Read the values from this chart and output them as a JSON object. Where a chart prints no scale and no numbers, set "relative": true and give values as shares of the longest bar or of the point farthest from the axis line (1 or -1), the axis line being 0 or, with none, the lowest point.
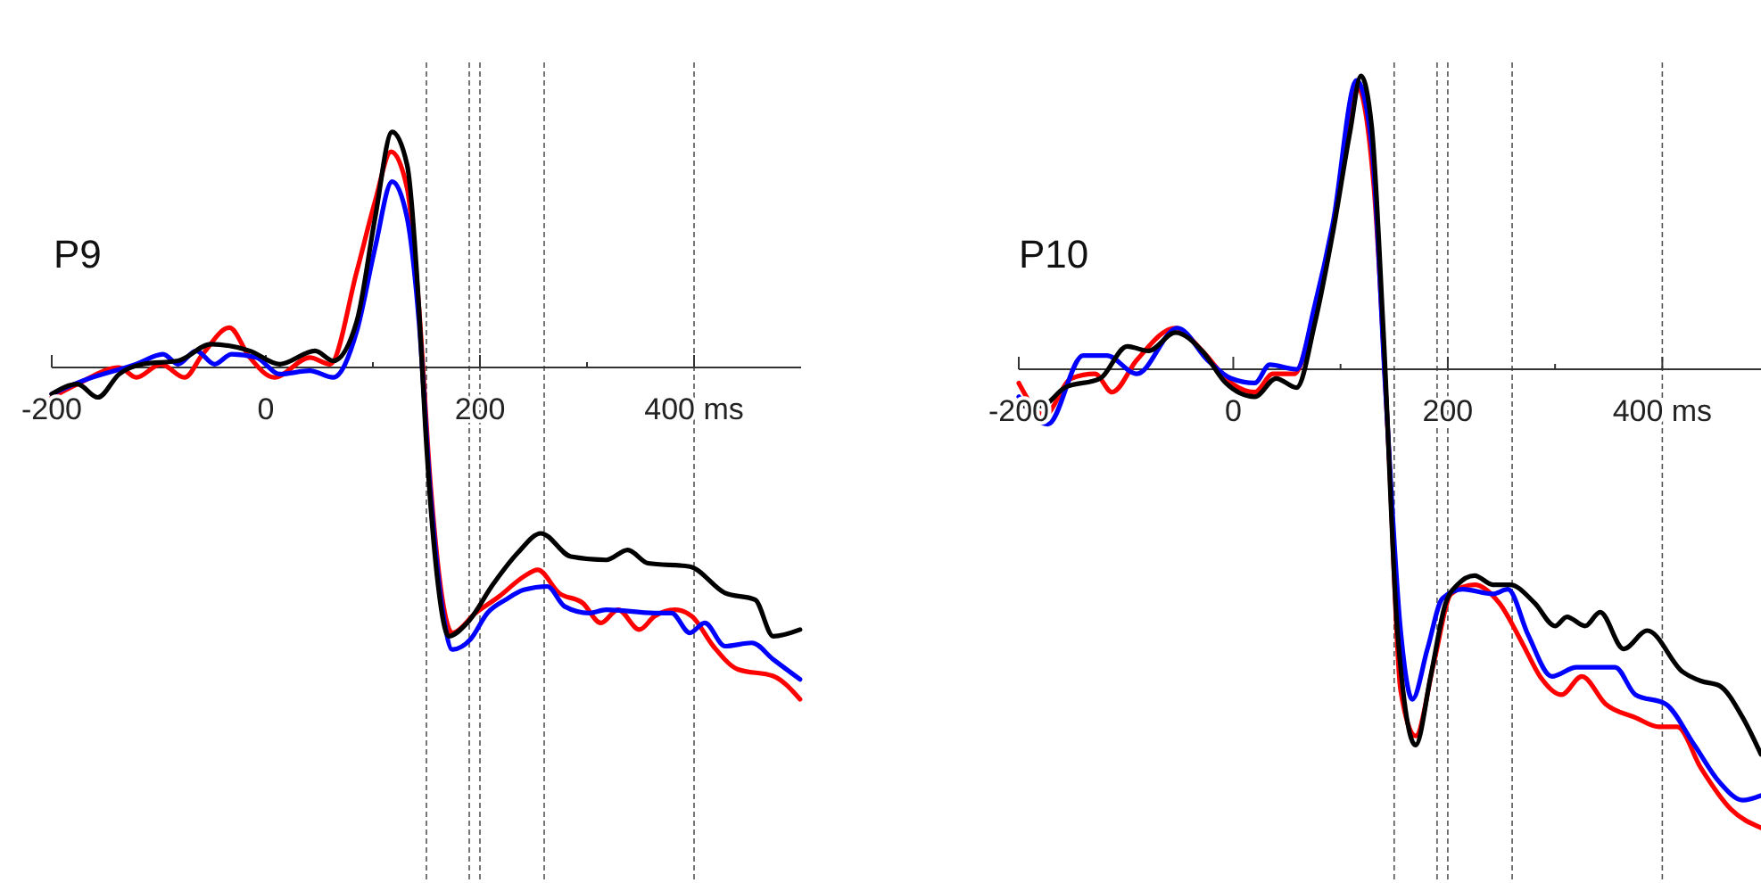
{
  "chart_data": [
    {
      "type": "line",
      "title": "P9",
      "relative": true,
      "xlim": [
        -200,
        500
      ],
      "xticks": [
        -200,
        0,
        {
          "value": 100,
          "label": null
        },
        200,
        {
          "value": 300,
          "label": null
        },
        {
          "value": 400,
          "label": "400 ms"
        }
      ],
      "line_style": "solid",
      "ref_lines": [
        {
          "axis": "x",
          "value": 150,
          "line_style": "dashed",
          "color": "#555555"
        },
        {
          "axis": "x",
          "value": 190,
          "line_style": "dashed",
          "color": "#555555"
        },
        {
          "axis": "x",
          "value": 200,
          "line_style": "dashed",
          "color": "#555555"
        },
        {
          "axis": "x",
          "value": 260,
          "line_style": "dashed",
          "color": "#555555"
        },
        {
          "axis": "x",
          "value": 400,
          "line_style": "dashed",
          "color": "#555555"
        }
      ],
      "series": [
        {
          "color": "#ff0000",
          "x": [
            -200,
            -176,
            -137,
            -121,
            -98,
            -76,
            -59,
            -34,
            -15,
            8,
            41,
            60,
            85,
            102,
            117,
            132,
            143,
            154,
            166,
            174,
            196,
            218,
            241,
            254,
            274,
            296,
            313,
            329,
            349,
            363,
            382,
            398,
            418,
            441,
            474,
            499
          ],
          "values": [
            -0.09,
            -0.05,
            0.0,
            -0.03,
            0.01,
            -0.03,
            0.04,
            0.12,
            0.03,
            -0.03,
            0.03,
            0.01,
            0.29,
            0.5,
            0.65,
            0.54,
            0.18,
            -0.36,
            -0.72,
            -0.8,
            -0.74,
            -0.69,
            -0.63,
            -0.61,
            -0.68,
            -0.71,
            -0.77,
            -0.73,
            -0.79,
            -0.75,
            -0.73,
            -0.75,
            -0.84,
            -0.91,
            -0.93,
            -1
          ]
        },
        {
          "color": "#0000ff",
          "x": [
            -200,
            -171,
            -121,
            -96,
            -82,
            -65,
            -48,
            -32,
            -9,
            13,
            41,
            63,
            85,
            102,
            118,
            132,
            143,
            154,
            166,
            174,
            191,
            207,
            224,
            241,
            263,
            279,
            302,
            318,
            363,
            379,
            396,
            410,
            429,
            454,
            474,
            499
          ],
          "values": [
            -0.08,
            -0.04,
            0.01,
            0.04,
            0.01,
            0.05,
            0.01,
            0.04,
            0.03,
            -0.02,
            -0.01,
            -0.03,
            0.11,
            0.36,
            0.56,
            0.45,
            0.14,
            -0.39,
            -0.75,
            -0.85,
            -0.82,
            -0.74,
            -0.7,
            -0.67,
            -0.66,
            -0.72,
            -0.74,
            -0.73,
            -0.74,
            -0.74,
            -0.8,
            -0.77,
            -0.84,
            -0.83,
            -0.88,
            -0.94
          ]
        },
        {
          "color": "#000000",
          "x": [
            -200,
            -176,
            -157,
            -137,
            -115,
            -82,
            -51,
            -15,
            13,
            46,
            63,
            85,
            102,
            118,
            132,
            143,
            149,
            160,
            171,
            188,
            213,
            235,
            257,
            285,
            318,
            338,
            357,
            396,
            429,
            457,
            474,
            499
          ],
          "values": [
            -0.08,
            -0.05,
            -0.09,
            -0.02,
            0.01,
            0.02,
            0.07,
            0.05,
            0.01,
            0.05,
            0.02,
            0.14,
            0.45,
            0.71,
            0.61,
            0.18,
            -0.18,
            -0.63,
            -0.81,
            -0.77,
            -0.65,
            -0.56,
            -0.5,
            -0.57,
            -0.58,
            -0.55,
            -0.59,
            -0.6,
            -0.68,
            -0.7,
            -0.81,
            -0.79
          ]
        }
      ]
    },
    {
      "type": "line",
      "title": "P10",
      "relative": true,
      "xlim": [
        -200,
        492
      ],
      "xticks": [
        -200,
        0,
        {
          "value": 100,
          "label": null
        },
        200,
        {
          "value": 300,
          "label": null
        },
        {
          "value": 400,
          "label": "400 ms"
        }
      ],
      "line_style": "solid",
      "ref_lines": [
        {
          "axis": "x",
          "value": 150,
          "line_style": "dashed",
          "color": "#555555"
        },
        {
          "axis": "x",
          "value": 190,
          "line_style": "dashed",
          "color": "#555555"
        },
        {
          "axis": "x",
          "value": 200,
          "line_style": "dashed",
          "color": "#555555"
        },
        {
          "axis": "x",
          "value": 260,
          "line_style": "dashed",
          "color": "#555555"
        },
        {
          "axis": "x",
          "value": 400,
          "line_style": "dashed",
          "color": "#555555"
        }
      ],
      "series": [
        {
          "color": "#ff0000",
          "x": [
            -200,
            -176,
            -151,
            -129,
            -113,
            -90,
            -54,
            -29,
            -2,
            20,
            37,
            57,
            76,
            93,
            115,
            131,
            145,
            156,
            170,
            187,
            203,
            225,
            248,
            270,
            286,
            306,
            325,
            347,
            375,
            397,
            414,
            436,
            464,
            492
          ],
          "values": [
            -0.03,
            -0.1,
            -0.02,
            -0.01,
            -0.05,
            0.02,
            0.09,
            0.04,
            -0.03,
            -0.05,
            -0.01,
            -0.01,
            0.13,
            0.31,
            0.62,
            0.4,
            -0.18,
            -0.7,
            -0.8,
            -0.64,
            -0.49,
            -0.47,
            -0.51,
            -0.6,
            -0.67,
            -0.71,
            -0.67,
            -0.73,
            -0.76,
            -0.78,
            -0.78,
            -0.87,
            -0.96,
            -1
          ]
        },
        {
          "color": "#0000ff",
          "x": [
            -200,
            -173,
            -140,
            -118,
            -90,
            -52,
            -24,
            -2,
            20,
            34,
            59,
            76,
            93,
            115,
            129,
            142,
            156,
            167,
            181,
            195,
            214,
            242,
            256,
            275,
            297,
            320,
            356,
            375,
            403,
            430,
            453,
            475,
            492
          ],
          "values": [
            -0.06,
            -0.12,
            0.03,
            0.03,
            -0.01,
            0.09,
            0.02,
            -0.02,
            -0.03,
            0.01,
            0.0,
            0.14,
            0.32,
            0.63,
            0.49,
            -0.05,
            -0.57,
            -0.72,
            -0.61,
            -0.5,
            -0.48,
            -0.49,
            -0.48,
            -0.58,
            -0.67,
            -0.65,
            -0.65,
            -0.71,
            -0.73,
            -0.82,
            -0.9,
            -0.94,
            -0.93
          ]
        },
        {
          "color": "#000000",
          "x": [
            -200,
            -179,
            -157,
            -124,
            -99,
            -79,
            -54,
            -29,
            -7,
            20,
            40,
            59,
            76,
            93,
            109,
            119,
            129,
            140,
            153,
            170,
            184,
            198,
            209,
            225,
            242,
            258,
            281,
            300,
            311,
            328,
            342,
            364,
            386,
            419,
            436,
            453,
            475,
            492
          ],
          "values": [
            -0.08,
            -0.08,
            -0.04,
            -0.02,
            0.05,
            0.04,
            0.08,
            0.04,
            -0.03,
            -0.06,
            -0.02,
            -0.04,
            0.1,
            0.3,
            0.52,
            0.64,
            0.53,
            0.08,
            -0.57,
            -0.82,
            -0.67,
            -0.51,
            -0.47,
            -0.45,
            -0.47,
            -0.47,
            -0.51,
            -0.56,
            -0.54,
            -0.56,
            -0.53,
            -0.61,
            -0.57,
            -0.66,
            -0.68,
            -0.69,
            -0.76,
            -0.84
          ]
        }
      ]
    }
  ]
}
